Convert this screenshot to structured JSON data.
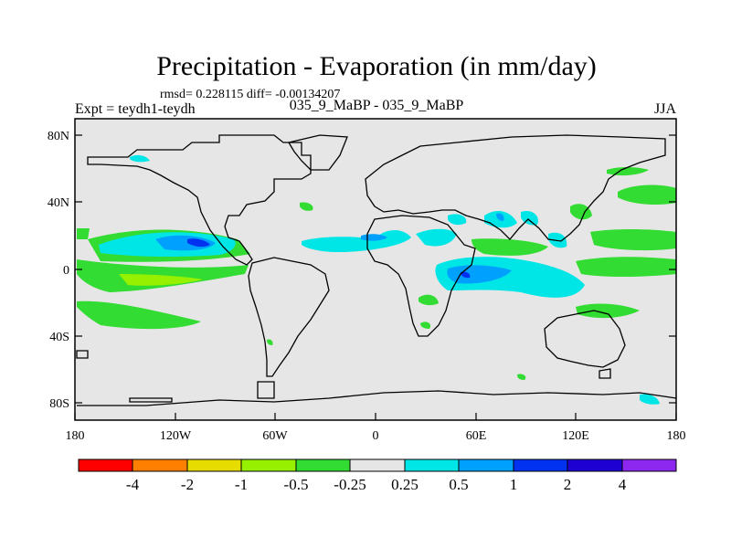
{
  "title": "Precipitation - Evaporation (in mm/day)",
  "stats": "rmsd= 0.228115 diff= -0.00134207",
  "left_label": "Expt = teydh1-teydh",
  "center_label": "035_9_MaBP - 035_9_MaBP",
  "right_label": "JJA",
  "axes": {
    "lat_ticks": [
      "80N",
      "40N",
      "0",
      "40S",
      "80S"
    ],
    "lon_ticks": [
      "180",
      "120W",
      "60W",
      "0",
      "60E",
      "120E",
      "180"
    ]
  },
  "colorbar": {
    "colors": [
      "#ff0000",
      "#ff7f00",
      "#e6dc00",
      "#96f000",
      "#32dc32",
      "#e6e6e6",
      "#00e6e6",
      "#00a0ff",
      "#0032f0",
      "#1e00d2",
      "#8c28f0"
    ],
    "labels": [
      "-4",
      "-2",
      "-1",
      "-0.5",
      "-0.25",
      "0.25",
      "0.5",
      "1",
      "2",
      "4"
    ]
  },
  "colors": {
    "land_sea_bg": "#e6e6e6",
    "green": "#32dc32",
    "light_green": "#96f000",
    "cyan": "#00e6e6",
    "light_blue": "#00a0ff",
    "blue": "#0032f0"
  }
}
